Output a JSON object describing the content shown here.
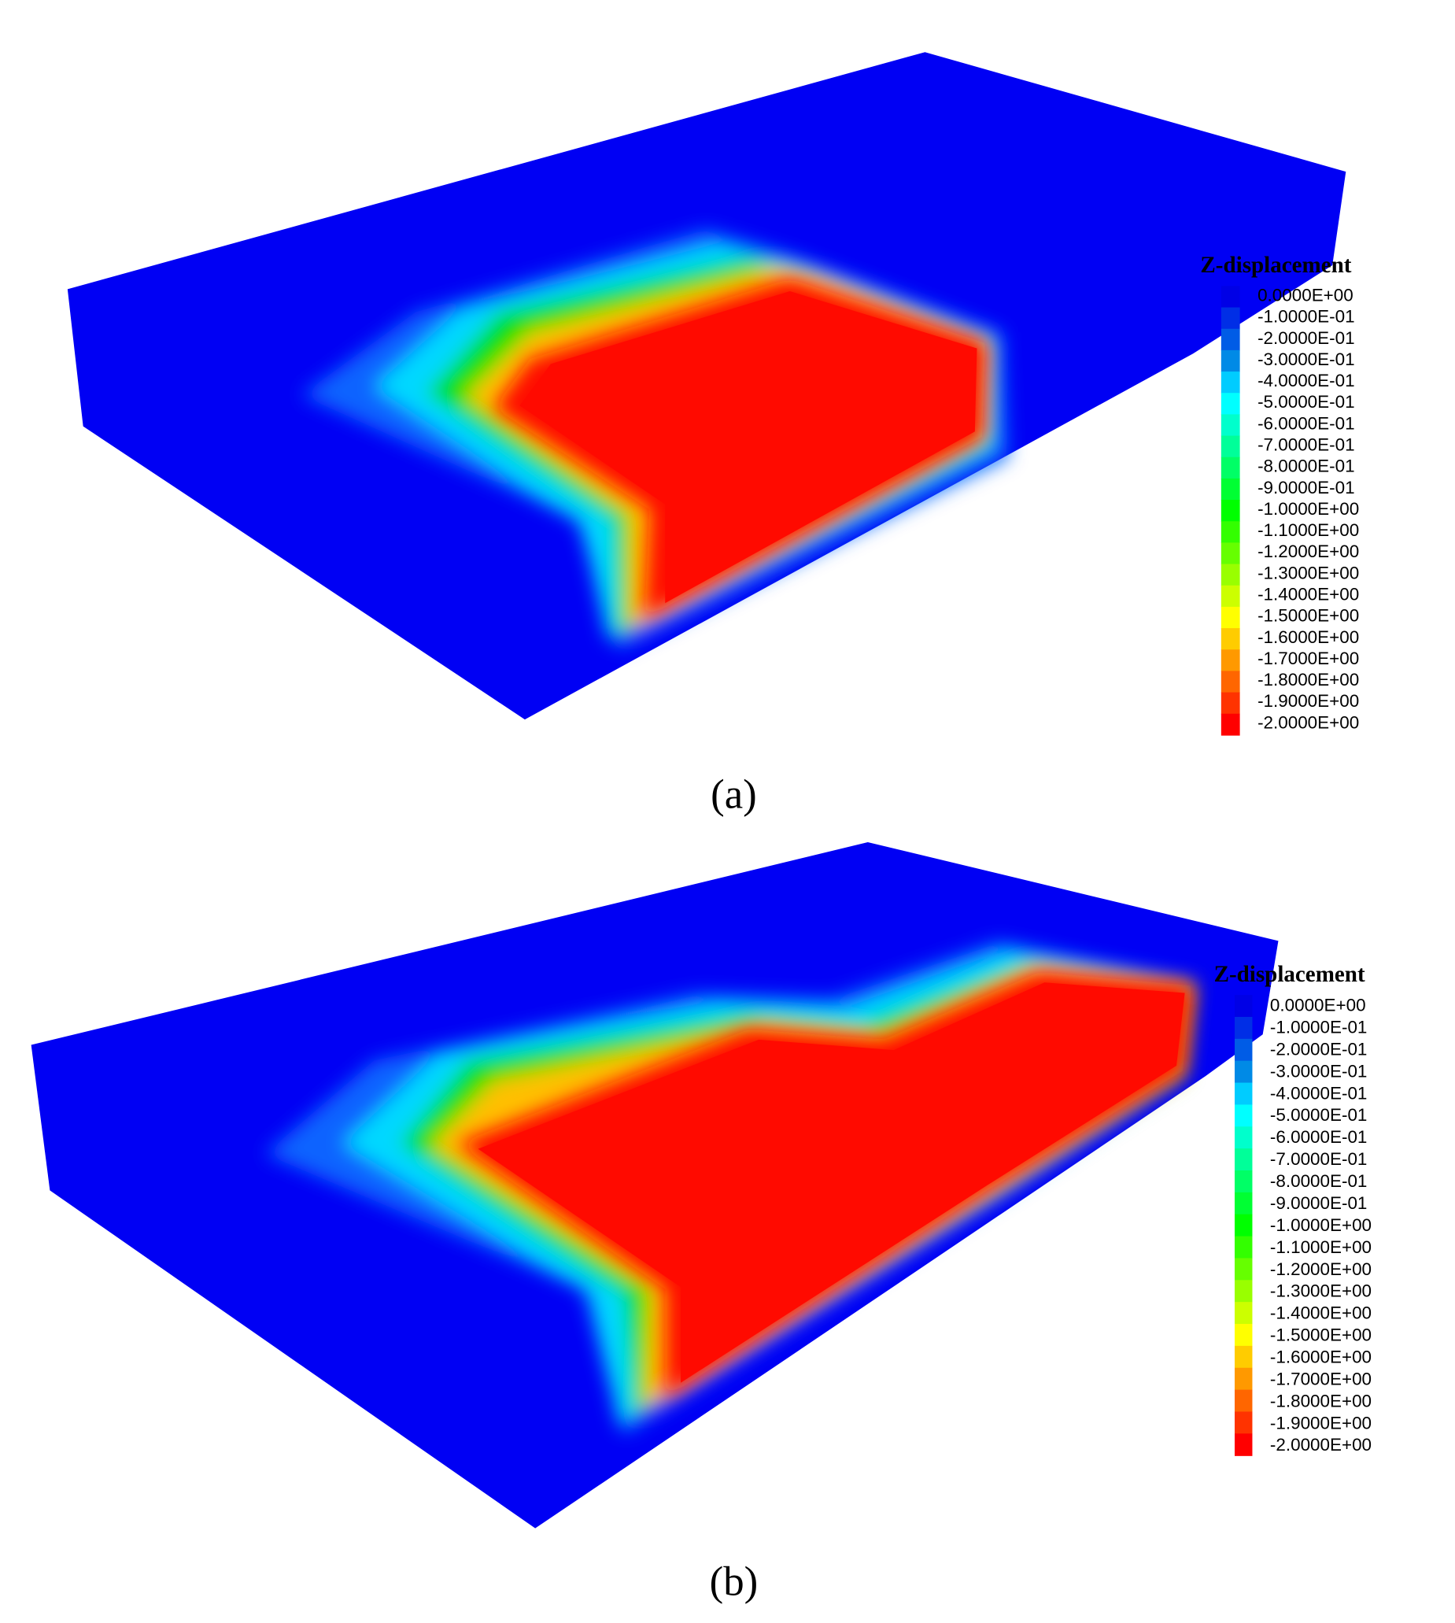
{
  "panels": [
    {
      "label": "(a)",
      "legend": {
        "title": "Z-displacement",
        "labels": [
          "0.0000E+00",
          "-1.0000E-01",
          "-2.0000E-01",
          "-3.0000E-01",
          "-4.0000E-01",
          "-5.0000E-01",
          "-6.0000E-01",
          "-7.0000E-01",
          "-8.0000E-01",
          "-9.0000E-01",
          "-1.0000E+00",
          "-1.1000E+00",
          "-1.2000E+00",
          "-1.3000E+00",
          "-1.4000E+00",
          "-1.5000E+00",
          "-1.6000E+00",
          "-1.7000E+00",
          "-1.8000E+00",
          "-1.9000E+00",
          "-2.0000E+00"
        ]
      }
    },
    {
      "label": "(b)",
      "legend": {
        "title": "Z-displacement",
        "labels": [
          "0.0000E+00",
          "-1.0000E-01",
          "-2.0000E-01",
          "-3.0000E-01",
          "-4.0000E-01",
          "-5.0000E-01",
          "-6.0000E-01",
          "-7.0000E-01",
          "-8.0000E-01",
          "-9.0000E-01",
          "-1.0000E+00",
          "-1.1000E+00",
          "-1.2000E+00",
          "-1.3000E+00",
          "-1.4000E+00",
          "-1.5000E+00",
          "-1.6000E+00",
          "-1.7000E+00",
          "-1.8000E+00",
          "-1.9000E+00",
          "-2.0000E+00"
        ]
      }
    }
  ]
}
